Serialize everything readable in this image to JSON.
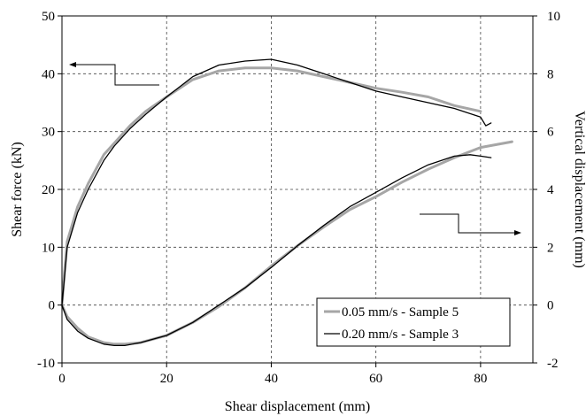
{
  "chart_data": {
    "type": "line",
    "title": "",
    "xlabel": "Shear displacement (mm)",
    "ylabel": "Shear force (kN)",
    "y2label": "Vertical displacement (mm)",
    "xlim": [
      0,
      90
    ],
    "ylim": [
      -10,
      50
    ],
    "y2lim": [
      -2,
      10
    ],
    "x_ticks": [
      0,
      20,
      40,
      60,
      80
    ],
    "y_ticks": [
      -10,
      0,
      10,
      20,
      30,
      40,
      50
    ],
    "y2_ticks": [
      -2,
      0,
      2,
      4,
      6,
      8,
      10
    ],
    "grid": true,
    "legend_position": "bottom-right",
    "colors": {
      "sample5": "#a6a6a6",
      "sample3": "#000000"
    },
    "series": [
      {
        "name": "0.05 mm/s - Sample 5",
        "axis": "left",
        "x": [
          0,
          0.5,
          1,
          2,
          3,
          5,
          8,
          10,
          13,
          16,
          20,
          25,
          30,
          35,
          40,
          45,
          50,
          55,
          60,
          65,
          70,
          75,
          80
        ],
        "y": [
          0,
          6,
          11,
          14,
          17,
          21,
          26,
          28,
          31,
          33.5,
          36,
          39,
          40.5,
          41,
          41,
          40.5,
          39.5,
          38.5,
          37.5,
          36.8,
          36,
          34.5,
          33.5
        ]
      },
      {
        "name": "0.05 mm/s - Sample 5",
        "axis": "right",
        "x": [
          0,
          1,
          3,
          5,
          8,
          10,
          12,
          15,
          20,
          25,
          30,
          35,
          40,
          45,
          50,
          55,
          60,
          65,
          70,
          75,
          80,
          83,
          86
        ],
        "y": [
          0,
          -0.4,
          -0.8,
          -1.1,
          -1.3,
          -1.35,
          -1.35,
          -1.3,
          -1.05,
          -0.6,
          -0.05,
          0.6,
          1.35,
          2.05,
          2.7,
          3.3,
          3.75,
          4.25,
          4.7,
          5.1,
          5.45,
          5.55,
          5.65
        ]
      },
      {
        "name": "0.20 mm/s - Sample 3",
        "axis": "left",
        "x": [
          0,
          0.5,
          1,
          2,
          3,
          5,
          8,
          10,
          13,
          16,
          20,
          25,
          30,
          35,
          40,
          45,
          50,
          55,
          60,
          65,
          70,
          75,
          80,
          81,
          82
        ],
        "y": [
          0,
          5,
          10,
          13,
          16,
          20,
          25,
          27.5,
          30.5,
          33,
          36,
          39.5,
          41.5,
          42.2,
          42.5,
          41.5,
          40,
          38.5,
          37,
          36,
          35,
          34,
          32.5,
          31,
          31.5
        ]
      },
      {
        "name": "0.20 mm/s - Sample 3",
        "axis": "right",
        "x": [
          0,
          1,
          3,
          5,
          8,
          10,
          12,
          15,
          20,
          25,
          30,
          35,
          40,
          45,
          50,
          55,
          60,
          65,
          70,
          75,
          78,
          80,
          82
        ],
        "y": [
          0,
          -0.5,
          -0.9,
          -1.15,
          -1.35,
          -1.4,
          -1.4,
          -1.3,
          -1.05,
          -0.6,
          0,
          0.6,
          1.3,
          2.05,
          2.75,
          3.4,
          3.9,
          4.4,
          4.85,
          5.15,
          5.2,
          5.15,
          5.1
        ]
      }
    ],
    "annotations": [
      {
        "type": "arrow",
        "direction": "left",
        "meaning": "left axis"
      },
      {
        "type": "arrow",
        "direction": "right",
        "meaning": "right axis"
      }
    ]
  }
}
